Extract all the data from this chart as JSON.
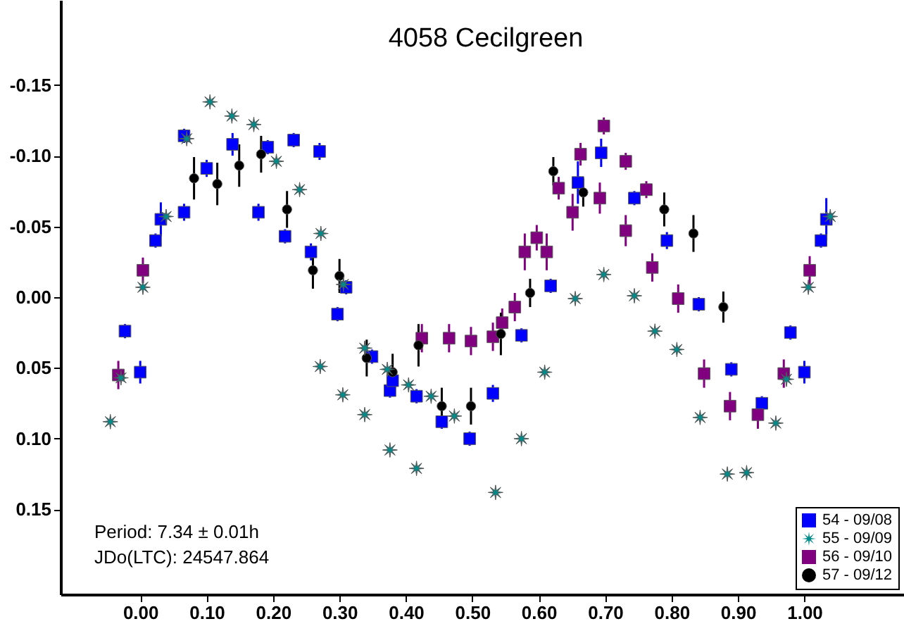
{
  "chart_data": {
    "type": "scatter",
    "title": "4058 Cecilgreen",
    "annotations": [
      "Period: 7.34 ± 0.01h",
      "JDo(LTC): 24547.864"
    ],
    "xlim": [
      -0.12,
      1.15
    ],
    "ylim": [
      0.21,
      -0.21
    ],
    "xticks": [
      {
        "value": 0,
        "label": "0.00"
      },
      {
        "value": 0.1,
        "label": "0.10"
      },
      {
        "value": 0.2,
        "label": "0.20"
      },
      {
        "value": 0.3,
        "label": "0.30"
      },
      {
        "value": 0.4,
        "label": "0.40"
      },
      {
        "value": 0.5,
        "label": "0.50"
      },
      {
        "value": 0.6,
        "label": "0.60"
      },
      {
        "value": 0.7,
        "label": "0.70"
      },
      {
        "value": 0.8,
        "label": "0.80"
      },
      {
        "value": 0.9,
        "label": "0.90"
      },
      {
        "value": 1,
        "label": "1.00"
      }
    ],
    "yticks": [
      {
        "value": -0.15,
        "label": "-0.15"
      },
      {
        "value": -0.1,
        "label": "-0.10"
      },
      {
        "value": -0.05,
        "label": "-0.05"
      },
      {
        "value": 0,
        "label": "0.00"
      },
      {
        "value": 0.05,
        "label": "0.05"
      },
      {
        "value": 0.1,
        "label": "0.10"
      },
      {
        "value": 0.15,
        "label": "0.15"
      }
    ],
    "grid": false,
    "legend": "bottom right",
    "series": [
      {
        "name": "54 - 09/08",
        "color": "#0000ff",
        "marker": "square",
        "x": [
          -0.023,
          0.0,
          0.023,
          0.031,
          0.066,
          0.066,
          0.1,
          0.139,
          0.178,
          0.192,
          0.218,
          0.231,
          0.257,
          0.27,
          0.297,
          0.31,
          0.349,
          0.376,
          0.38,
          0.416,
          0.454,
          0.496,
          0.531,
          0.574,
          0.618,
          0.659,
          0.694,
          0.744,
          0.793,
          0.841,
          0.89,
          0.936,
          0.979,
          1.0,
          1.025,
          1.033
        ],
        "values": [
          0.024,
          0.053,
          -0.04,
          -0.055,
          -0.06,
          -0.114,
          -0.091,
          -0.108,
          -0.06,
          -0.106,
          -0.043,
          -0.111,
          -0.032,
          -0.103,
          0.012,
          -0.007,
          0.042,
          0.066,
          0.059,
          0.07,
          0.088,
          0.1,
          0.068,
          0.027,
          -0.008,
          -0.081,
          -0.102,
          -0.07,
          -0.04,
          0.005,
          0.051,
          0.075,
          0.025,
          0.053,
          -0.04,
          -0.055
        ],
        "errors": [
          0.005,
          0.008,
          0.005,
          0.012,
          0.006,
          0.005,
          0.006,
          0.008,
          0.006,
          0.005,
          0.005,
          0.005,
          0.006,
          0.006,
          0.005,
          0.005,
          0.005,
          0.005,
          0.006,
          0.005,
          0.005,
          0.005,
          0.006,
          0.005,
          0.005,
          0.015,
          0.01,
          0.005,
          0.006,
          0.005,
          0.005,
          0.005,
          0.005,
          0.008,
          0.005,
          0.015
        ]
      },
      {
        "name": "55 - 09/09",
        "color": "#008b8b",
        "marker": "star",
        "x": [
          -0.045,
          -0.029,
          0.004,
          0.039,
          0.07,
          0.105,
          0.138,
          0.171,
          0.205,
          0.24,
          0.272,
          0.306,
          0.271,
          0.305,
          0.338,
          0.338,
          0.372,
          0.376,
          0.404,
          0.416,
          0.438,
          0.473,
          0.535,
          0.574,
          0.609,
          0.655,
          0.698,
          0.744,
          0.775,
          0.808,
          0.843,
          0.884,
          0.913,
          0.957,
          0.973,
          1.006,
          1.039
        ],
        "values": [
          0.088,
          0.057,
          -0.007,
          -0.057,
          -0.112,
          -0.138,
          -0.128,
          -0.122,
          -0.096,
          -0.076,
          -0.045,
          -0.009,
          0.049,
          0.069,
          0.083,
          0.036,
          0.051,
          0.108,
          0.062,
          0.121,
          0.07,
          0.084,
          0.138,
          0.1,
          0.053,
          0.001,
          -0.016,
          -0.001,
          0.024,
          0.037,
          0.085,
          0.125,
          0.124,
          0.089,
          0.058,
          -0.007,
          -0.057
        ]
      },
      {
        "name": "56 - 09/10",
        "color": "#800080",
        "marker": "square",
        "x": [
          -0.033,
          0.004,
          0.424,
          0.465,
          0.498,
          0.531,
          0.545,
          0.564,
          0.579,
          0.597,
          0.612,
          0.63,
          0.651,
          0.663,
          0.692,
          0.698,
          0.731,
          0.731,
          0.762,
          0.771,
          0.81,
          0.849,
          0.888,
          0.93,
          0.969,
          1.008
        ],
        "values": [
          0.055,
          -0.019,
          0.029,
          0.029,
          0.031,
          0.028,
          0.018,
          0.007,
          -0.032,
          -0.042,
          -0.032,
          -0.077,
          -0.06,
          -0.101,
          -0.07,
          -0.121,
          -0.096,
          -0.047,
          -0.076,
          -0.021,
          0.001,
          0.054,
          0.077,
          0.083,
          0.054,
          -0.019
        ],
        "errors": [
          0.01,
          0.009,
          0.01,
          0.01,
          0.01,
          0.01,
          0.01,
          0.01,
          0.013,
          0.009,
          0.013,
          0.008,
          0.013,
          0.008,
          0.011,
          0.006,
          0.006,
          0.011,
          0.006,
          0.01,
          0.01,
          0.01,
          0.01,
          0.01,
          0.01,
          0.01
        ]
      },
      {
        "name": "57 - 09/12",
        "color": "#000000",
        "marker": "circle",
        "x": [
          0.081,
          0.116,
          0.149,
          0.182,
          0.221,
          0.26,
          0.3,
          0.341,
          0.38,
          0.419,
          0.454,
          0.498,
          0.543,
          0.587,
          0.622,
          0.667,
          0.789,
          0.833,
          0.878
        ],
        "values": [
          -0.084,
          -0.08,
          -0.093,
          -0.101,
          -0.062,
          -0.019,
          -0.015,
          0.043,
          0.053,
          0.034,
          0.077,
          0.077,
          0.026,
          -0.003,
          -0.089,
          -0.074,
          -0.062,
          -0.045,
          0.007
        ],
        "errors": [
          0.015,
          0.015,
          0.015,
          0.013,
          0.013,
          0.013,
          0.012,
          0.013,
          0.013,
          0.015,
          0.013,
          0.013,
          0.015,
          0.01,
          0.01,
          0.01,
          0.012,
          0.013,
          0.011
        ]
      }
    ]
  }
}
